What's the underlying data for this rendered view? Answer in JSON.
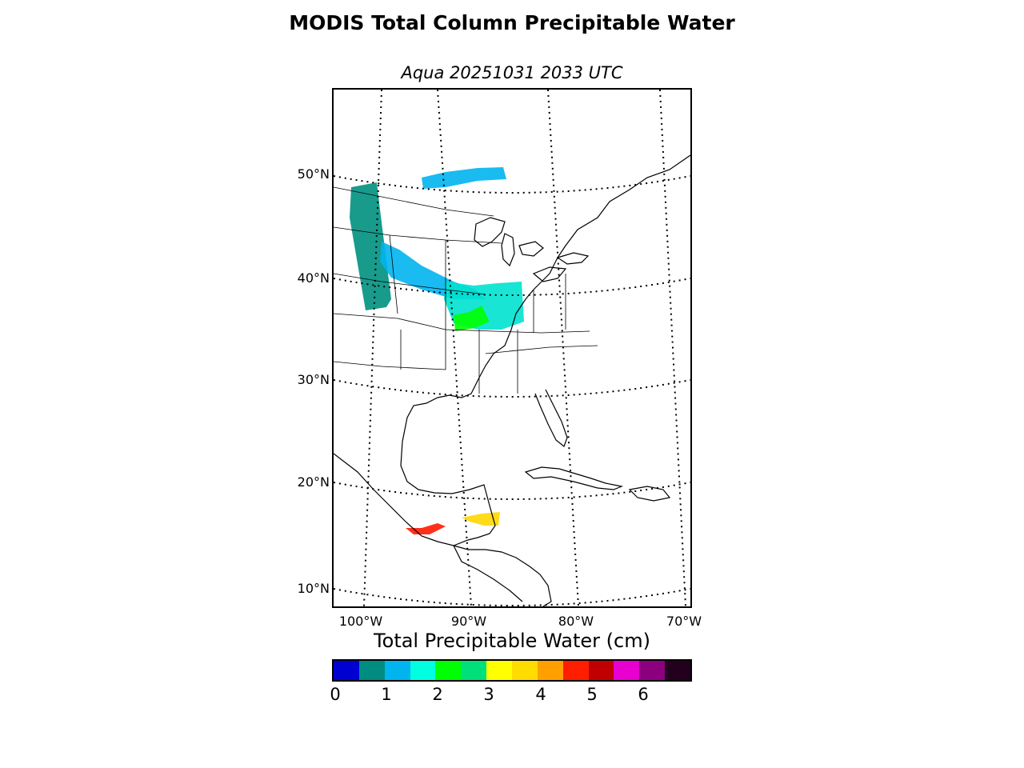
{
  "title": "MODIS Total Column Precipitable Water",
  "subtitle": "Aqua 20251031 2033 UTC",
  "map": {
    "projection": "lambert-conformal",
    "lat_labels": [
      "50°N",
      "40°N",
      "30°N",
      "20°N",
      "10°N"
    ],
    "lon_labels": [
      "100°W",
      "90°W",
      "80°W",
      "70°W"
    ],
    "graticule_style": "dotted",
    "coastline_color": "#000000",
    "features": [
      {
        "name": "swath-pacific-northwest",
        "color": "#009080",
        "value_cm": 0.8
      },
      {
        "name": "swath-northern-plains",
        "color": "#00b4f0",
        "value_cm": 1.2
      },
      {
        "name": "swath-great-lakes",
        "color": "#00b4f0",
        "value_cm": 1.2
      },
      {
        "name": "swath-ohio-valley",
        "color": "#00e2d0",
        "value_cm": 1.7
      },
      {
        "name": "patch-missouri",
        "color": "#00ff00",
        "value_cm": 2.2
      },
      {
        "name": "patch-yucatan",
        "color": "#ffd700",
        "value_cm": 3.7
      },
      {
        "name": "patch-southern-mexico",
        "color": "#ff1a00",
        "value_cm": 4.7
      }
    ]
  },
  "colorbar": {
    "label": "Total Precipitable Water (cm)",
    "colors": [
      "#0000d0",
      "#008c80",
      "#00b4f0",
      "#00ffe0",
      "#00ff00",
      "#00e07a",
      "#ffff00",
      "#ffdd00",
      "#ffa000",
      "#ff1e00",
      "#c00000",
      "#e800d0",
      "#8c0080",
      "#22001e"
    ],
    "ticks": [
      "0",
      "1",
      "2",
      "3",
      "4",
      "5",
      "6"
    ],
    "range": [
      0,
      7
    ]
  }
}
